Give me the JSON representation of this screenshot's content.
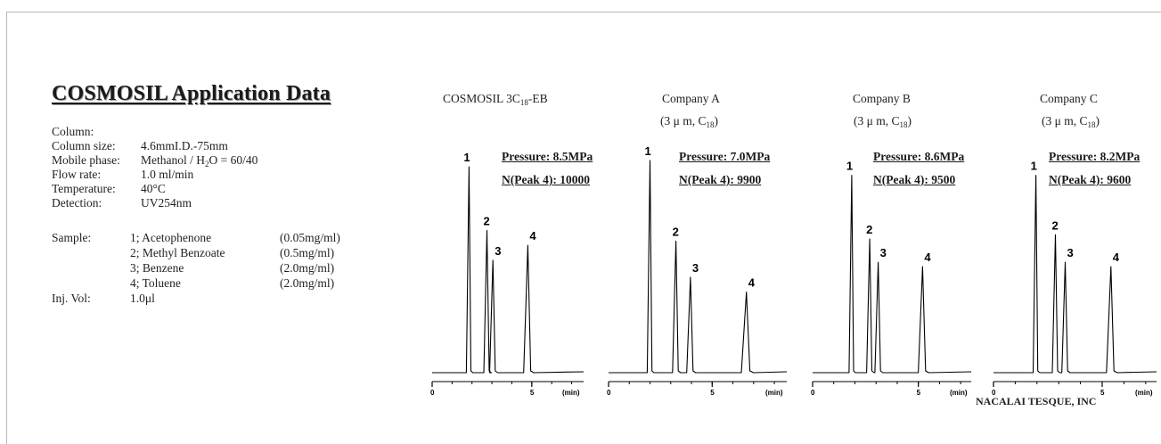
{
  "page_title": "COSMOSIL Application Data",
  "conditions": [
    {
      "label": "Column:",
      "value": ""
    },
    {
      "label": "Column size:",
      "value": "4.6mmI.D.-75mm"
    },
    {
      "label": "Mobile phase:",
      "value": "Methanol / H₂O = 60/40"
    },
    {
      "label": "Flow rate:",
      "value": "1.0 ml/min"
    },
    {
      "label": "Temperature:",
      "value": "40°C"
    },
    {
      "label": "Detection:",
      "value": "UV254nm"
    }
  ],
  "sample": {
    "label": "Sample:",
    "items": [
      {
        "name": "1; Acetophenone",
        "conc": "(0.05mg/ml)"
      },
      {
        "name": "2; Methyl Benzoate",
        "conc": "(0.5mg/ml)"
      },
      {
        "name": "3; Benzene",
        "conc": "(2.0mg/ml)"
      },
      {
        "name": "4; Toluene",
        "conc": "(2.0mg/ml)"
      }
    ]
  },
  "injection": {
    "label": "Inj. Vol:",
    "value": "1.0μl"
  },
  "footer": "NACALAI TESQUE, INC",
  "chart_data": {
    "type": "line",
    "xlabel": "(min)",
    "line_color": "#000000",
    "panels": [
      {
        "name": "COSMOSIL 3C18-EB",
        "title_main": "COSMOSIL 3C",
        "title_sub": "18",
        "title_tail": "-EB",
        "spec": "",
        "pressure": "Pressure: 8.5MPa",
        "plates": "N(Peak 4): 10000",
        "xlim": [
          0,
          7.6
        ],
        "ticks": [
          0,
          5
        ],
        "peaks": [
          {
            "label": "1",
            "time": 1.85,
            "height": 0.97
          },
          {
            "label": "2",
            "time": 2.75,
            "height": 0.67
          },
          {
            "label": "3",
            "time": 3.05,
            "height": 0.53
          },
          {
            "label": "4",
            "time": 4.8,
            "height": 0.6
          }
        ]
      },
      {
        "name": "Company A",
        "title_main": "Company A",
        "title_sub": "",
        "title_tail": "",
        "spec": "(3 μ m, C18)",
        "pressure": "Pressure: 7.0MPa",
        "plates": "N(Peak 4): 9900",
        "xlim": [
          0,
          8.6
        ],
        "ticks": [
          0,
          5
        ],
        "peaks": [
          {
            "label": "1",
            "time": 2.0,
            "height": 1.0
          },
          {
            "label": "2",
            "time": 3.25,
            "height": 0.62
          },
          {
            "label": "3",
            "time": 3.95,
            "height": 0.45
          },
          {
            "label": "4",
            "time": 6.65,
            "height": 0.38
          }
        ]
      },
      {
        "name": "Company B",
        "title_main": "Company B",
        "title_sub": "",
        "title_tail": "",
        "spec": "(3 μ m, C18)",
        "pressure": "Pressure: 8.6MPa",
        "plates": "N(Peak 4): 9500",
        "xlim": [
          0,
          7.5
        ],
        "ticks": [
          0,
          5
        ],
        "peaks": [
          {
            "label": "1",
            "time": 1.85,
            "height": 0.93
          },
          {
            "label": "2",
            "time": 2.7,
            "height": 0.63
          },
          {
            "label": "3",
            "time": 3.1,
            "height": 0.52
          },
          {
            "label": "4",
            "time": 5.2,
            "height": 0.5
          }
        ]
      },
      {
        "name": "Company C",
        "title_main": "Company C",
        "title_sub": "",
        "title_tail": "",
        "spec": "(3 μ m, C18)",
        "pressure": "Pressure: 8.2MPa",
        "plates": "N(Peak 4): 9600",
        "xlim": [
          0,
          7.5
        ],
        "ticks": [
          0,
          5
        ],
        "peaks": [
          {
            "label": "1",
            "time": 1.95,
            "height": 0.93
          },
          {
            "label": "2",
            "time": 2.85,
            "height": 0.65
          },
          {
            "label": "3",
            "time": 3.3,
            "height": 0.52
          },
          {
            "label": "4",
            "time": 5.4,
            "height": 0.5
          }
        ]
      }
    ]
  }
}
